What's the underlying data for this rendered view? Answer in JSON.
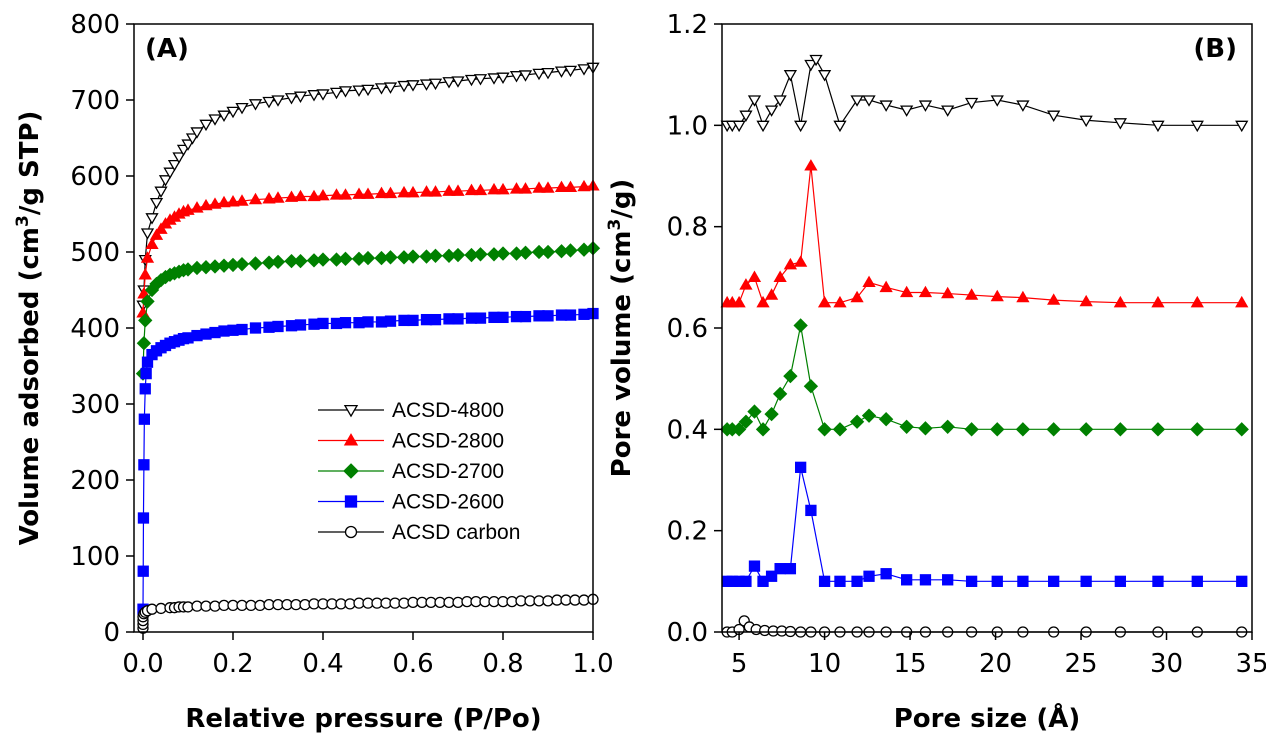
{
  "chart_data": [
    {
      "type": "line",
      "panel_label": "(A)",
      "xlabel": "Relative pressure (P/Po)",
      "ylabel_prefix": "Volume adsorbed (cm",
      "ylabel_sup": "3",
      "ylabel_suffix": "/g STP)",
      "xlim": [
        -0.02,
        1.0
      ],
      "ylim": [
        0,
        800
      ],
      "xticks": [
        0.0,
        0.2,
        0.4,
        0.6,
        0.8,
        1.0
      ],
      "xtick_labels": [
        "0.0",
        "0.2",
        "0.4",
        "0.6",
        "0.8",
        "1.0"
      ],
      "yticks": [
        0,
        100,
        200,
        300,
        400,
        500,
        600,
        700,
        800
      ],
      "ytick_labels": [
        "0",
        "100",
        "200",
        "300",
        "400",
        "500",
        "600",
        "700",
        "800"
      ],
      "legend_position": "center-right",
      "series": [
        {
          "name": "ACSD-4800",
          "color": "#000000",
          "marker": "triangle-down",
          "fill": "#ffffff",
          "x": [
            0.0,
            0.002,
            0.005,
            0.01,
            0.02,
            0.03,
            0.04,
            0.05,
            0.06,
            0.07,
            0.08,
            0.09,
            0.1,
            0.11,
            0.12,
            0.14,
            0.16,
            0.18,
            0.2,
            0.22,
            0.25,
            0.28,
            0.3,
            0.33,
            0.35,
            0.38,
            0.4,
            0.43,
            0.45,
            0.48,
            0.5,
            0.53,
            0.55,
            0.58,
            0.6,
            0.63,
            0.65,
            0.68,
            0.7,
            0.73,
            0.75,
            0.78,
            0.8,
            0.83,
            0.85,
            0.88,
            0.9,
            0.93,
            0.95,
            0.98,
            1.0
          ],
          "y": [
            430,
            450,
            490,
            525,
            545,
            565,
            580,
            595,
            605,
            615,
            625,
            635,
            642,
            650,
            658,
            668,
            675,
            680,
            685,
            690,
            695,
            698,
            700,
            703,
            705,
            707,
            708,
            710,
            712,
            713,
            714,
            716,
            717,
            719,
            720,
            721,
            722,
            724,
            725,
            727,
            728,
            729,
            730,
            732,
            733,
            735,
            736,
            738,
            739,
            741,
            743
          ]
        },
        {
          "name": "ACSD-2800",
          "color": "#ff0000",
          "marker": "triangle-up",
          "fill": "#ff0000",
          "x": [
            0.0,
            0.002,
            0.005,
            0.01,
            0.02,
            0.03,
            0.04,
            0.05,
            0.06,
            0.07,
            0.08,
            0.09,
            0.1,
            0.12,
            0.14,
            0.16,
            0.18,
            0.2,
            0.22,
            0.25,
            0.28,
            0.3,
            0.33,
            0.35,
            0.38,
            0.4,
            0.43,
            0.45,
            0.48,
            0.5,
            0.53,
            0.55,
            0.58,
            0.6,
            0.63,
            0.65,
            0.68,
            0.7,
            0.73,
            0.75,
            0.78,
            0.8,
            0.83,
            0.85,
            0.88,
            0.9,
            0.93,
            0.95,
            0.98,
            1.0
          ],
          "y": [
            420,
            445,
            470,
            492,
            510,
            522,
            530,
            537,
            542,
            546,
            550,
            553,
            555,
            558,
            561,
            563,
            565,
            566,
            567,
            569,
            570,
            571,
            572,
            573,
            573,
            574,
            575,
            575,
            576,
            576,
            577,
            577,
            578,
            578,
            579,
            579,
            580,
            580,
            581,
            581,
            582,
            582,
            583,
            583,
            584,
            584,
            585,
            585,
            586,
            587
          ]
        },
        {
          "name": "ACSD-2700",
          "color": "#008000",
          "marker": "diamond",
          "fill": "#008000",
          "x": [
            0.0,
            0.002,
            0.005,
            0.01,
            0.02,
            0.03,
            0.04,
            0.05,
            0.06,
            0.07,
            0.08,
            0.09,
            0.1,
            0.12,
            0.14,
            0.16,
            0.18,
            0.2,
            0.22,
            0.25,
            0.28,
            0.3,
            0.33,
            0.35,
            0.38,
            0.4,
            0.43,
            0.45,
            0.48,
            0.5,
            0.53,
            0.55,
            0.58,
            0.6,
            0.63,
            0.65,
            0.68,
            0.7,
            0.73,
            0.75,
            0.78,
            0.8,
            0.83,
            0.85,
            0.88,
            0.9,
            0.93,
            0.95,
            0.98,
            1.0
          ],
          "y": [
            340,
            380,
            410,
            435,
            450,
            458,
            463,
            467,
            470,
            472,
            474,
            476,
            477,
            479,
            480,
            481,
            482,
            483,
            484,
            485,
            486,
            487,
            488,
            488,
            489,
            490,
            490,
            491,
            491,
            492,
            492,
            493,
            493,
            494,
            494,
            495,
            495,
            496,
            496,
            497,
            497,
            498,
            498,
            499,
            500,
            500,
            501,
            502,
            503,
            505
          ]
        },
        {
          "name": "ACSD-2600",
          "color": "#0000ff",
          "marker": "square",
          "fill": "#0000ff",
          "x": [
            0.0,
            0.0005,
            0.001,
            0.002,
            0.003,
            0.005,
            0.007,
            0.01,
            0.02,
            0.03,
            0.04,
            0.05,
            0.06,
            0.07,
            0.08,
            0.09,
            0.1,
            0.12,
            0.14,
            0.16,
            0.18,
            0.2,
            0.22,
            0.25,
            0.28,
            0.3,
            0.33,
            0.35,
            0.38,
            0.4,
            0.43,
            0.45,
            0.48,
            0.5,
            0.53,
            0.55,
            0.58,
            0.6,
            0.63,
            0.65,
            0.68,
            0.7,
            0.73,
            0.75,
            0.78,
            0.8,
            0.83,
            0.85,
            0.88,
            0.9,
            0.93,
            0.95,
            0.98,
            1.0
          ],
          "y": [
            30,
            80,
            150,
            220,
            280,
            320,
            340,
            355,
            365,
            370,
            374,
            377,
            380,
            382,
            384,
            386,
            387,
            390,
            392,
            394,
            396,
            397,
            398,
            400,
            401,
            402,
            403,
            404,
            405,
            406,
            406,
            407,
            407,
            408,
            408,
            409,
            410,
            410,
            411,
            411,
            412,
            412,
            413,
            413,
            414,
            414,
            415,
            415,
            416,
            416,
            417,
            417,
            418,
            419
          ]
        },
        {
          "name": "ACSD carbon",
          "color": "#000000",
          "marker": "circle",
          "fill": "#ffffff",
          "x": [
            0.0,
            0.0,
            0.0,
            0.0,
            0.002,
            0.005,
            0.01,
            0.02,
            0.04,
            0.06,
            0.07,
            0.08,
            0.09,
            0.1,
            0.12,
            0.14,
            0.16,
            0.18,
            0.2,
            0.22,
            0.24,
            0.26,
            0.28,
            0.3,
            0.32,
            0.34,
            0.36,
            0.38,
            0.4,
            0.42,
            0.44,
            0.46,
            0.48,
            0.5,
            0.52,
            0.54,
            0.56,
            0.58,
            0.6,
            0.62,
            0.64,
            0.66,
            0.68,
            0.7,
            0.72,
            0.74,
            0.76,
            0.78,
            0.8,
            0.82,
            0.84,
            0.86,
            0.88,
            0.9,
            0.92,
            0.94,
            0.96,
            0.98,
            1.0
          ],
          "y": [
            5,
            10,
            15,
            20,
            24,
            26,
            28,
            30,
            31,
            32,
            32,
            33,
            33,
            33,
            34,
            34,
            34,
            35,
            35,
            35,
            35,
            35,
            36,
            36,
            36,
            36,
            36,
            37,
            37,
            37,
            37,
            37,
            38,
            38,
            38,
            38,
            38,
            38,
            39,
            39,
            39,
            39,
            39,
            39,
            40,
            40,
            40,
            40,
            40,
            40,
            41,
            41,
            41,
            41,
            42,
            42,
            42,
            42,
            43
          ]
        }
      ]
    },
    {
      "type": "line",
      "panel_label": "(B)",
      "xlabel": "Pore size (Å)",
      "ylabel_prefix": "Pore volume (cm",
      "ylabel_sup": "3",
      "ylabel_suffix": "/g)",
      "xlim": [
        4,
        35
      ],
      "ylim": [
        0,
        1.2
      ],
      "xticks": [
        5,
        10,
        15,
        20,
        25,
        30,
        35
      ],
      "xtick_labels": [
        "5",
        "10",
        "15",
        "20",
        "25",
        "30",
        "35"
      ],
      "yticks": [
        0.0,
        0.2,
        0.4,
        0.6,
        0.8,
        1.0,
        1.2
      ],
      "ytick_labels": [
        "0.0",
        "0.2",
        "0.4",
        "0.6",
        "0.8",
        "1.0",
        "1.2"
      ],
      "series": [
        {
          "name": "ACSD-4800",
          "color": "#000000",
          "marker": "triangle-down",
          "fill": "#ffffff",
          "x": [
            4.3,
            4.6,
            5.0,
            5.4,
            5.9,
            6.4,
            6.9,
            7.4,
            8.0,
            8.6,
            9.2,
            9.5,
            10.0,
            10.9,
            11.9,
            12.6,
            13.6,
            14.8,
            15.9,
            17.2,
            18.6,
            20.1,
            21.6,
            23.4,
            25.3,
            27.3,
            29.5,
            31.8,
            34.4
          ],
          "y": [
            1.0,
            1.0,
            1.0,
            1.02,
            1.05,
            1.0,
            1.03,
            1.05,
            1.1,
            1.0,
            1.12,
            1.13,
            1.1,
            1.0,
            1.05,
            1.05,
            1.04,
            1.03,
            1.04,
            1.03,
            1.045,
            1.05,
            1.04,
            1.02,
            1.01,
            1.005,
            1.0,
            1.0,
            1.0
          ]
        },
        {
          "name": "ACSD-2800",
          "color": "#ff0000",
          "marker": "triangle-up",
          "fill": "#ff0000",
          "x": [
            4.3,
            4.6,
            5.0,
            5.4,
            5.9,
            6.4,
            6.9,
            7.4,
            8.0,
            8.6,
            9.2,
            10.0,
            10.9,
            11.9,
            12.6,
            13.6,
            14.8,
            15.9,
            17.2,
            18.6,
            20.1,
            21.6,
            23.4,
            25.3,
            27.3,
            29.5,
            31.8,
            34.4
          ],
          "y": [
            0.65,
            0.65,
            0.65,
            0.685,
            0.7,
            0.65,
            0.665,
            0.7,
            0.725,
            0.73,
            0.92,
            0.65,
            0.65,
            0.66,
            0.69,
            0.68,
            0.67,
            0.67,
            0.668,
            0.665,
            0.662,
            0.66,
            0.655,
            0.652,
            0.65,
            0.65,
            0.65,
            0.65
          ]
        },
        {
          "name": "ACSD-2700",
          "color": "#008000",
          "marker": "diamond",
          "fill": "#008000",
          "x": [
            4.3,
            4.6,
            5.0,
            5.4,
            5.9,
            6.4,
            6.9,
            7.4,
            8.0,
            8.6,
            9.2,
            10.0,
            10.9,
            11.9,
            12.6,
            13.6,
            14.8,
            15.9,
            17.2,
            18.6,
            20.1,
            21.6,
            23.4,
            25.3,
            27.3,
            29.5,
            31.8,
            34.4
          ],
          "y": [
            0.4,
            0.4,
            0.4,
            0.415,
            0.435,
            0.4,
            0.43,
            0.47,
            0.505,
            0.605,
            0.485,
            0.4,
            0.4,
            0.415,
            0.427,
            0.42,
            0.405,
            0.402,
            0.405,
            0.4,
            0.4,
            0.4,
            0.4,
            0.4,
            0.4,
            0.4,
            0.4,
            0.4
          ]
        },
        {
          "name": "ACSD-2600",
          "color": "#0000ff",
          "marker": "square",
          "fill": "#0000ff",
          "x": [
            4.3,
            4.6,
            5.0,
            5.4,
            5.9,
            6.4,
            6.9,
            7.4,
            8.0,
            8.6,
            9.2,
            10.0,
            10.9,
            11.9,
            12.6,
            13.6,
            14.8,
            15.9,
            17.2,
            18.6,
            20.1,
            21.6,
            23.4,
            25.3,
            27.3,
            29.5,
            31.8,
            34.4
          ],
          "y": [
            0.1,
            0.1,
            0.1,
            0.1,
            0.13,
            0.1,
            0.11,
            0.125,
            0.125,
            0.325,
            0.24,
            0.1,
            0.1,
            0.1,
            0.11,
            0.115,
            0.103,
            0.103,
            0.103,
            0.1,
            0.1,
            0.1,
            0.1,
            0.1,
            0.1,
            0.1,
            0.1,
            0.1
          ]
        },
        {
          "name": "ACSD carbon",
          "color": "#000000",
          "marker": "circle",
          "fill": "#ffffff",
          "x": [
            4.3,
            4.6,
            5.0,
            5.3,
            5.6,
            6.0,
            6.5,
            7.0,
            7.5,
            8.0,
            8.6,
            9.2,
            10.0,
            10.9,
            11.9,
            12.6,
            13.6,
            14.8,
            15.9,
            17.2,
            18.6,
            20.1,
            21.6,
            23.4,
            25.3,
            27.3,
            29.5,
            31.8,
            34.4
          ],
          "y": [
            0.0,
            0.0,
            0.005,
            0.022,
            0.01,
            0.005,
            0.003,
            0.002,
            0.002,
            0.001,
            0.0,
            0.0,
            0.0,
            0.0,
            0.0,
            0.0,
            0.0,
            0.0,
            0.0,
            0.0,
            0.0,
            0.0,
            0.0,
            0.0,
            0.0,
            0.0,
            0.0,
            0.0,
            0.0
          ]
        }
      ]
    }
  ]
}
